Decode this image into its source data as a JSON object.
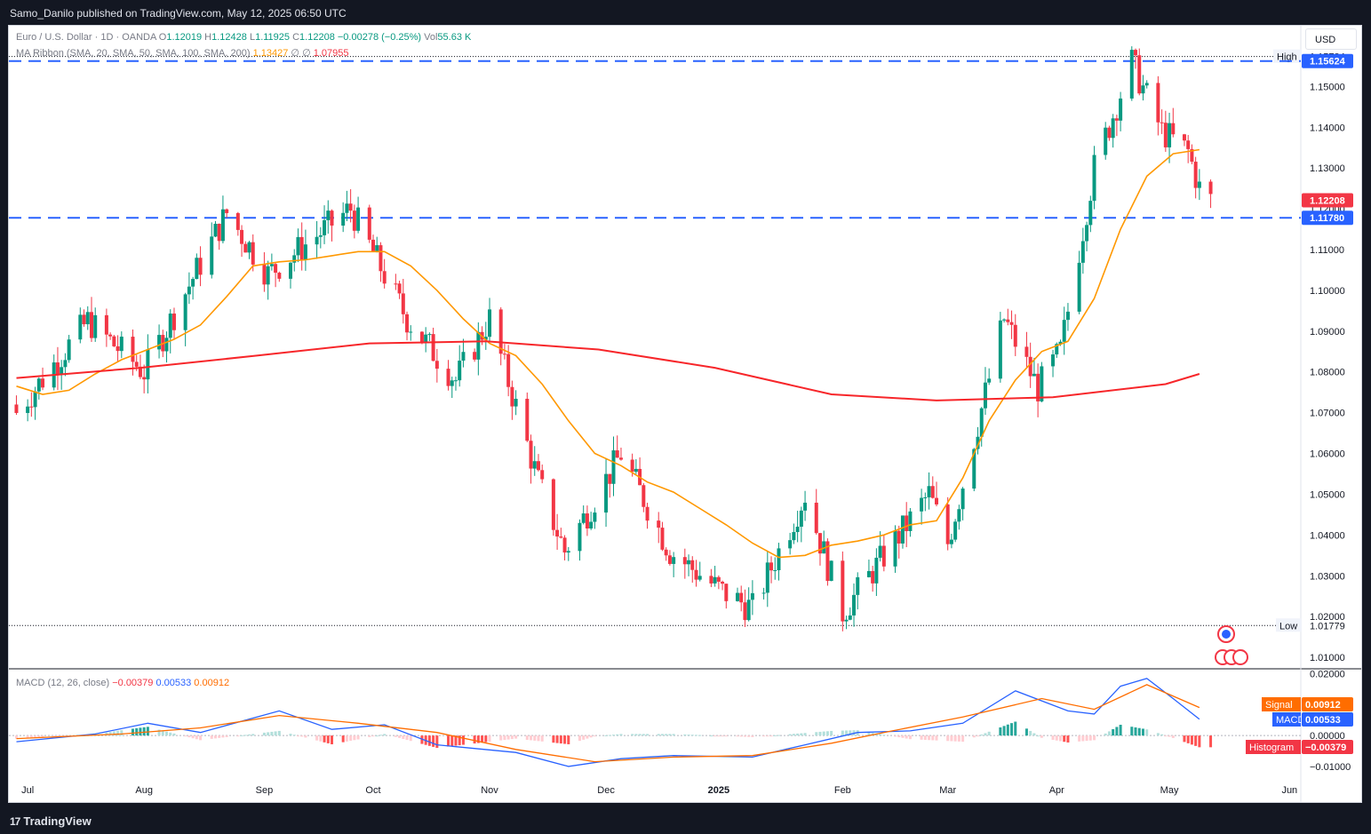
{
  "header": {
    "publisher": "Samo_Danilo published on TradingView.com, May 12, 2025 06:50 UTC"
  },
  "legend": {
    "symbol": "Euro / U.S. Dollar · 1D · OANDA",
    "o_label": "O",
    "o": "1.12019",
    "h_label": "H",
    "h": "1.12428",
    "l_label": "L",
    "l": "1.11925",
    "c_label": "C",
    "c": "1.12208",
    "change": "−0.00278 (−0.25%)",
    "vol_label": "Vol",
    "vol": "55.63 K",
    "ma_label": "MA Ribbon (SMA, 20, SMA, 50, SMA, 100, SMA, 200)",
    "ma20": "1.13427",
    "ma_null1": "∅",
    "ma_null2": "∅",
    "ma200": "1.07955",
    "macd_label": "MACD (12, 26, close)",
    "macd_hist": "−0.00379",
    "macd_line": "0.00533",
    "macd_signal": "0.00912"
  },
  "currency_button": "USD",
  "footer": {
    "brand": "TradingView"
  },
  "colors": {
    "up": "#089981",
    "down": "#f23645",
    "ma20": "#ff9800",
    "ma200": "#f7262a",
    "level": "#2962ff",
    "macd": "#2962ff",
    "signal": "#ff6d00"
  },
  "chart_data": [
    {
      "type": "candlestick",
      "symbol": "EUR/USD",
      "timeframe": "1D",
      "y_axis_ticks": [
        "1.01000",
        "1.02000",
        "1.03000",
        "1.04000",
        "1.05000",
        "1.06000",
        "1.07000",
        "1.08000",
        "1.09000",
        "1.10000",
        "1.11000",
        "1.12000",
        "1.13000",
        "1.14000",
        "1.15000"
      ],
      "ylim": [
        1.0074,
        1.1625
      ],
      "x_axis_ticks": [
        "Jul",
        "Aug",
        "Sep",
        "Oct",
        "Nov",
        "Dec",
        "2025",
        "Feb",
        "Mar",
        "Apr",
        "May",
        "Jun"
      ],
      "high_label": "High",
      "high_value": "1.15734",
      "low_label": "Low",
      "low_value": "1.01779",
      "last_price": "1.12208",
      "horizontal_levels": [
        "1.15624",
        "1.11780"
      ],
      "series": [
        {
          "name": "SMA 20",
          "points": [
            [
              "2024-06-28",
              1.0765
            ],
            [
              "2024-07-05",
              1.0745
            ],
            [
              "2024-07-12",
              1.0755
            ],
            [
              "2024-07-19",
              1.0795
            ],
            [
              "2024-07-26",
              1.083
            ],
            [
              "2024-08-02",
              1.0855
            ],
            [
              "2024-08-09",
              1.088
            ],
            [
              "2024-08-16",
              1.0915
            ],
            [
              "2024-08-23",
              1.0985
            ],
            [
              "2024-08-30",
              1.106
            ],
            [
              "2024-09-06",
              1.107
            ],
            [
              "2024-09-13",
              1.1075
            ],
            [
              "2024-09-20",
              1.1085
            ],
            [
              "2024-09-27",
              1.1095
            ],
            [
              "2024-10-04",
              1.1095
            ],
            [
              "2024-10-11",
              1.106
            ],
            [
              "2024-10-18",
              1.1
            ],
            [
              "2024-10-25",
              1.093
            ],
            [
              "2024-11-01",
              1.087
            ],
            [
              "2024-11-08",
              1.084
            ],
            [
              "2024-11-15",
              1.077
            ],
            [
              "2024-11-22",
              1.068
            ],
            [
              "2024-11-29",
              1.06
            ],
            [
              "2024-12-06",
              1.057
            ],
            [
              "2024-12-13",
              1.053
            ],
            [
              "2024-12-20",
              1.0505
            ],
            [
              "2024-12-27",
              1.0465
            ],
            [
              "2025-01-03",
              1.0425
            ],
            [
              "2025-01-10",
              1.038
            ],
            [
              "2025-01-17",
              1.0345
            ],
            [
              "2025-01-24",
              1.035
            ],
            [
              "2025-01-31",
              1.0375
            ],
            [
              "2025-02-07",
              1.0385
            ],
            [
              "2025-02-14",
              1.04
            ],
            [
              "2025-02-21",
              1.0425
            ],
            [
              "2025-02-28",
              1.0435
            ],
            [
              "2025-03-07",
              1.054
            ],
            [
              "2025-03-14",
              1.068
            ],
            [
              "2025-03-21",
              1.078
            ],
            [
              "2025-03-28",
              1.085
            ],
            [
              "2025-04-04",
              1.0875
            ],
            [
              "2025-04-11",
              1.098
            ],
            [
              "2025-04-18",
              1.115
            ],
            [
              "2025-04-25",
              1.128
            ],
            [
              "2025-05-02",
              1.1335
            ],
            [
              "2025-05-09",
              1.1345
            ]
          ]
        },
        {
          "name": "SMA 200",
          "points": [
            [
              "2024-06-28",
              1.0785
            ],
            [
              "2024-07-31",
              1.081
            ],
            [
              "2024-08-31",
              1.084
            ],
            [
              "2024-09-30",
              1.087
            ],
            [
              "2024-10-31",
              1.0875
            ],
            [
              "2024-11-30",
              1.0855
            ],
            [
              "2024-12-31",
              1.081
            ],
            [
              "2025-01-31",
              1.0745
            ],
            [
              "2025-02-28",
              1.073
            ],
            [
              "2025-03-31",
              1.0738
            ],
            [
              "2025-04-30",
              1.077
            ],
            [
              "2025-05-09",
              1.0795
            ]
          ]
        }
      ]
    },
    {
      "type": "line",
      "title": "MACD (12, 26, close)",
      "y_axis_ticks": [
        "0.02000",
        "0.01000",
        "0.00000",
        "−0.01000"
      ],
      "ylim": [
        -0.0135,
        0.0205
      ],
      "labels": {
        "signal": "Signal",
        "macd": "MACD",
        "histogram": "Histogram"
      },
      "values": {
        "signal": "0.00912",
        "macd": "0.00533",
        "histogram": "−0.00379"
      },
      "series": [
        {
          "name": "MACD",
          "points": [
            [
              "2024-06-28",
              -0.002
            ],
            [
              "2024-07-19",
              0.0005
            ],
            [
              "2024-08-02",
              0.004
            ],
            [
              "2024-08-16",
              0.001
            ],
            [
              "2024-09-06",
              0.008
            ],
            [
              "2024-09-20",
              0.002
            ],
            [
              "2024-10-04",
              0.0035
            ],
            [
              "2024-10-18",
              -0.003
            ],
            [
              "2024-11-08",
              -0.0055
            ],
            [
              "2024-11-22",
              -0.01
            ],
            [
              "2024-12-06",
              -0.0075
            ],
            [
              "2024-12-20",
              -0.0065
            ],
            [
              "2025-01-10",
              -0.007
            ],
            [
              "2025-01-24",
              -0.003
            ],
            [
              "2025-02-07",
              0.001
            ],
            [
              "2025-02-21",
              0.0015
            ],
            [
              "2025-03-07",
              0.004
            ],
            [
              "2025-03-21",
              0.0145
            ],
            [
              "2025-04-04",
              0.008
            ],
            [
              "2025-04-11",
              0.007
            ],
            [
              "2025-04-18",
              0.016
            ],
            [
              "2025-04-25",
              0.0185
            ],
            [
              "2025-05-02",
              0.012
            ],
            [
              "2025-05-09",
              0.0053
            ]
          ]
        },
        {
          "name": "Signal",
          "points": [
            [
              "2024-06-28",
              -0.001
            ],
            [
              "2024-07-26",
              0.0005
            ],
            [
              "2024-08-16",
              0.0025
            ],
            [
              "2024-09-06",
              0.0065
            ],
            [
              "2024-09-27",
              0.004
            ],
            [
              "2024-10-18",
              0.001
            ],
            [
              "2024-11-08",
              -0.0045
            ],
            [
              "2024-11-29",
              -0.0085
            ],
            [
              "2024-12-20",
              -0.007
            ],
            [
              "2025-01-10",
              -0.0065
            ],
            [
              "2025-01-31",
              -0.0025
            ],
            [
              "2025-02-14",
              0.001
            ],
            [
              "2025-03-07",
              0.006
            ],
            [
              "2025-03-28",
              0.012
            ],
            [
              "2025-04-11",
              0.0085
            ],
            [
              "2025-04-25",
              0.0165
            ],
            [
              "2025-05-09",
              0.0091
            ]
          ]
        }
      ]
    }
  ]
}
